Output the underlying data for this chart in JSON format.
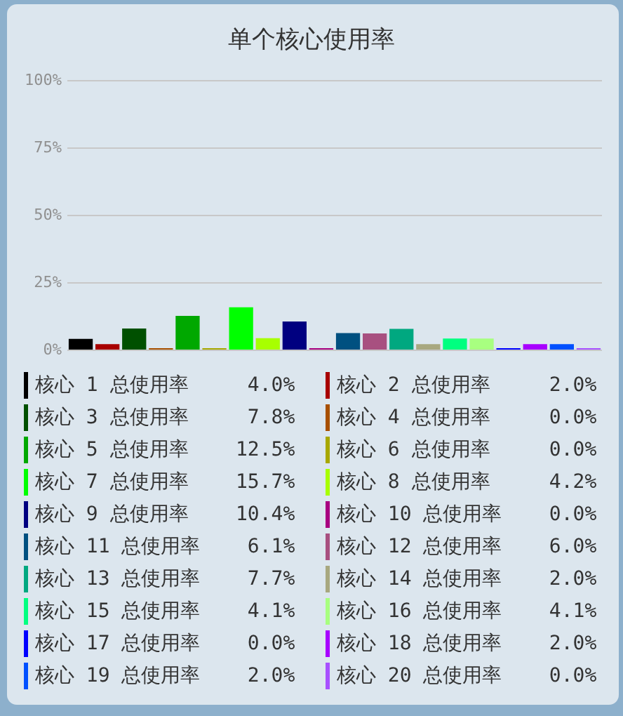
{
  "chart_data": {
    "type": "bar",
    "title": "单个核心使用率",
    "categories": [
      null,
      null,
      null,
      null,
      null,
      null,
      null,
      null,
      null,
      null,
      null,
      null,
      null,
      null,
      null,
      null,
      null,
      null,
      null,
      null
    ],
    "series": [
      {
        "name": "核心 1 总使用率 4.0%",
        "color": "#000000",
        "values": [
          4.0,
          null,
          null,
          null,
          null,
          null,
          null,
          null,
          null,
          null,
          null,
          null,
          null,
          null,
          null,
          null,
          null,
          null,
          null,
          null
        ]
      },
      {
        "name": "核心 2 总使用率 2.0%",
        "color": "#a80000",
        "values": [
          null,
          2.0,
          null,
          null,
          null,
          null,
          null,
          null,
          null,
          null,
          null,
          null,
          null,
          null,
          null,
          null,
          null,
          null,
          null,
          null
        ]
      },
      {
        "name": "核心 3 总使用率 7.8%",
        "color": "#005000",
        "values": [
          null,
          null,
          7.8,
          null,
          null,
          null,
          null,
          null,
          null,
          null,
          null,
          null,
          null,
          null,
          null,
          null,
          null,
          null,
          null,
          null
        ]
      },
      {
        "name": "核心 4 总使用率 0.0%",
        "color": "#a85000",
        "values": [
          null,
          null,
          null,
          0.0,
          null,
          null,
          null,
          null,
          null,
          null,
          null,
          null,
          null,
          null,
          null,
          null,
          null,
          null,
          null,
          null
        ]
      },
      {
        "name": "核心 5 总使用率 12.5%",
        "color": "#00a800",
        "values": [
          null,
          null,
          null,
          null,
          12.5,
          null,
          null,
          null,
          null,
          null,
          null,
          null,
          null,
          null,
          null,
          null,
          null,
          null,
          null,
          null
        ]
      },
      {
        "name": "核心 6 总使用率 0.0%",
        "color": "#a8a800",
        "values": [
          null,
          null,
          null,
          null,
          null,
          0.0,
          null,
          null,
          null,
          null,
          null,
          null,
          null,
          null,
          null,
          null,
          null,
          null,
          null,
          null
        ]
      },
      {
        "name": "核心 7 总使用率 15.7%",
        "color": "#00ff00",
        "values": [
          null,
          null,
          null,
          null,
          null,
          null,
          15.7,
          null,
          null,
          null,
          null,
          null,
          null,
          null,
          null,
          null,
          null,
          null,
          null,
          null
        ]
      },
      {
        "name": "核心 8 总使用率 4.2%",
        "color": "#a8ff00",
        "values": [
          null,
          null,
          null,
          null,
          null,
          null,
          null,
          4.2,
          null,
          null,
          null,
          null,
          null,
          null,
          null,
          null,
          null,
          null,
          null,
          null
        ]
      },
      {
        "name": "核心 9 总使用率 10.4%",
        "color": "#000080",
        "values": [
          null,
          null,
          null,
          null,
          null,
          null,
          null,
          null,
          10.4,
          null,
          null,
          null,
          null,
          null,
          null,
          null,
          null,
          null,
          null,
          null
        ]
      },
      {
        "name": "核心 10 总使用率 0.0%",
        "color": "#a80080",
        "values": [
          null,
          null,
          null,
          null,
          null,
          null,
          null,
          null,
          null,
          0.0,
          null,
          null,
          null,
          null,
          null,
          null,
          null,
          null,
          null,
          null
        ]
      },
      {
        "name": "核心 11 总使用率 6.1%",
        "color": "#005080",
        "values": [
          null,
          null,
          null,
          null,
          null,
          null,
          null,
          null,
          null,
          null,
          6.1,
          null,
          null,
          null,
          null,
          null,
          null,
          null,
          null,
          null
        ]
      },
      {
        "name": "核心 12 总使用率 6.0%",
        "color": "#a85080",
        "values": [
          null,
          null,
          null,
          null,
          null,
          null,
          null,
          null,
          null,
          null,
          null,
          6.0,
          null,
          null,
          null,
          null,
          null,
          null,
          null,
          null
        ]
      },
      {
        "name": "核心 13 总使用率 7.7%",
        "color": "#00a880",
        "values": [
          null,
          null,
          null,
          null,
          null,
          null,
          null,
          null,
          null,
          null,
          null,
          null,
          7.7,
          null,
          null,
          null,
          null,
          null,
          null,
          null
        ]
      },
      {
        "name": "核心 14 总使用率 2.0%",
        "color": "#a8a880",
        "values": [
          null,
          null,
          null,
          null,
          null,
          null,
          null,
          null,
          null,
          null,
          null,
          null,
          null,
          2.0,
          null,
          null,
          null,
          null,
          null,
          null
        ]
      },
      {
        "name": "核心 15 总使用率 4.1%",
        "color": "#00ff80",
        "values": [
          null,
          null,
          null,
          null,
          null,
          null,
          null,
          null,
          null,
          null,
          null,
          null,
          null,
          null,
          4.1,
          null,
          null,
          null,
          null,
          null
        ]
      },
      {
        "name": "核心 16 总使用率 4.1%",
        "color": "#a8ff80",
        "values": [
          null,
          null,
          null,
          null,
          null,
          null,
          null,
          null,
          null,
          null,
          null,
          null,
          null,
          null,
          null,
          4.1,
          null,
          null,
          null,
          null
        ]
      },
      {
        "name": "核心 17 总使用率 0.0%",
        "color": "#0000ff",
        "values": [
          null,
          null,
          null,
          null,
          null,
          null,
          null,
          null,
          null,
          null,
          null,
          null,
          null,
          null,
          null,
          null,
          0.0,
          null,
          null,
          null
        ]
      },
      {
        "name": "核心 18 总使用率 2.0%",
        "color": "#a800ff",
        "values": [
          null,
          null,
          null,
          null,
          null,
          null,
          null,
          null,
          null,
          null,
          null,
          null,
          null,
          null,
          null,
          null,
          null,
          2.0,
          null,
          null
        ]
      },
      {
        "name": "核心 19 总使用率 2.0%",
        "color": "#0050ff",
        "values": [
          null,
          null,
          null,
          null,
          null,
          null,
          null,
          null,
          null,
          null,
          null,
          null,
          null,
          null,
          null,
          null,
          null,
          null,
          2.0,
          null
        ]
      },
      {
        "name": "核心 20 总使用率 0.0%",
        "color": "#a850ff",
        "values": [
          null,
          null,
          null,
          null,
          null,
          null,
          null,
          null,
          null,
          null,
          null,
          null,
          null,
          null,
          null,
          null,
          null,
          null,
          null,
          0.0
        ]
      }
    ],
    "ylim": [
      0,
      100
    ],
    "yticks": [
      {
        "value": 0,
        "label": "0%"
      },
      {
        "value": 25,
        "label": "25%"
      },
      {
        "value": 50,
        "label": "50%"
      },
      {
        "value": 75,
        "label": "75%"
      },
      {
        "value": 100,
        "label": "100%"
      }
    ],
    "grid": "y",
    "legend": "bottom",
    "tick_labels": "y"
  }
}
